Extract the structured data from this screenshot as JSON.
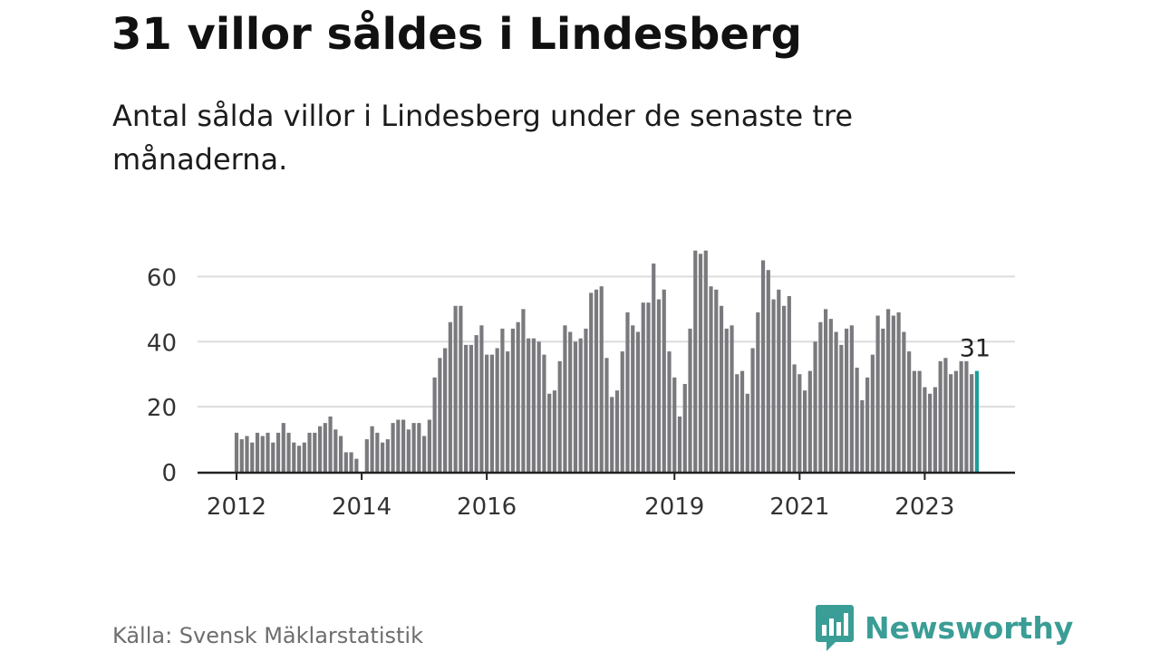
{
  "header": {
    "title": "31 villor såldes i Lindesberg",
    "subtitle": "Antal sålda villor i Lindesberg under de senaste tre månaderna."
  },
  "footer": {
    "source": "Källa: Svensk Mäklarstatistik",
    "brand": "Newsworthy",
    "brand_icon": "newsworthy-logo-icon"
  },
  "colors": {
    "bar": "#7a7a7e",
    "highlight": "#1a9e9a",
    "grid": "#dcdcdc",
    "axis": "#222222",
    "brand": "#3a9d96"
  },
  "chart_data": {
    "type": "bar",
    "title": "31 villor såldes i Lindesberg",
    "subtitle": "Antal sålda villor i Lindesberg under de senaste tre månaderna.",
    "x_start": "2012-01",
    "x_tick_labels": [
      "2012",
      "2014",
      "2016",
      "2019",
      "2021",
      "2023"
    ],
    "y_ticks": [
      0,
      20,
      40,
      60
    ],
    "ylim": [
      0,
      70
    ],
    "grid": true,
    "highlight_last": true,
    "annotation": "31",
    "values": [
      12,
      10,
      11,
      9,
      12,
      11,
      12,
      9,
      12,
      15,
      12,
      9,
      8,
      9,
      12,
      12,
      14,
      15,
      17,
      13,
      11,
      6,
      6,
      4,
      0,
      10,
      14,
      12,
      9,
      10,
      15,
      16,
      16,
      13,
      15,
      15,
      11,
      16,
      29,
      35,
      38,
      46,
      51,
      51,
      39,
      39,
      42,
      45,
      36,
      36,
      38,
      44,
      37,
      44,
      46,
      50,
      41,
      41,
      40,
      36,
      24,
      25,
      34,
      45,
      43,
      40,
      41,
      44,
      55,
      56,
      57,
      35,
      23,
      25,
      37,
      49,
      45,
      43,
      52,
      52,
      64,
      53,
      56,
      37,
      29,
      17,
      27,
      44,
      68,
      67,
      68,
      57,
      56,
      51,
      44,
      45,
      30,
      31,
      24,
      38,
      49,
      65,
      62,
      53,
      56,
      51,
      54,
      33,
      30,
      25,
      31,
      40,
      46,
      50,
      47,
      43,
      39,
      44,
      45,
      32,
      22,
      29,
      36,
      48,
      44,
      50,
      48,
      49,
      43,
      37,
      31,
      31,
      26,
      24,
      26,
      34,
      35,
      30,
      31,
      34,
      34,
      30,
      31
    ]
  }
}
